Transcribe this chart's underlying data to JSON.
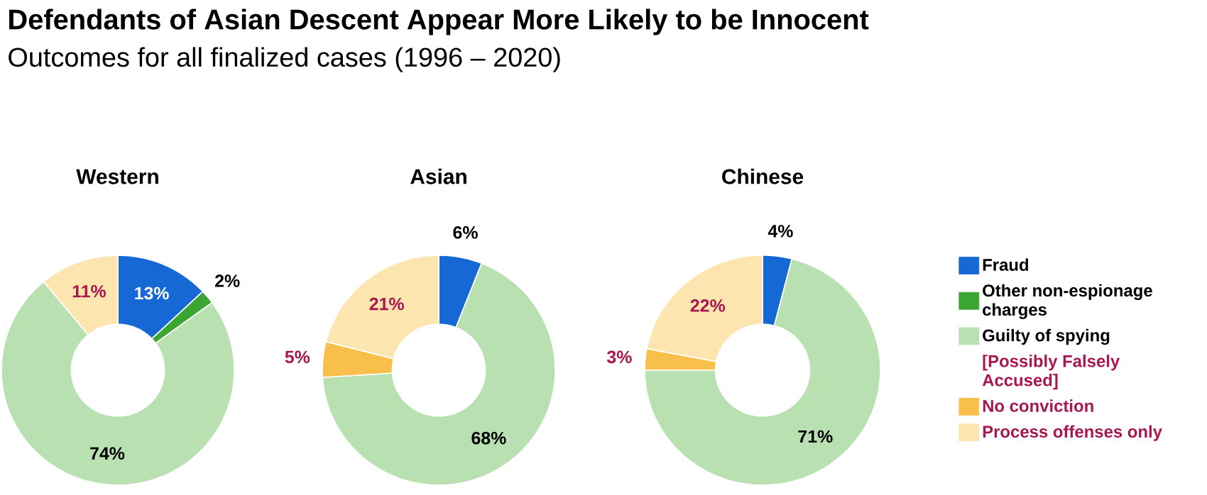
{
  "chart_data": [
    {
      "type": "other",
      "title": "Defendants of Asian Descent Appear More Likely to be Innocent",
      "subtitle": "Outcomes for all finalized cases (1996 – 2020)"
    },
    {
      "type": "donut",
      "title": "Western",
      "categories": [
        "Fraud",
        "Other non-espionage charges",
        "Guilty of spying",
        "No conviction",
        "Process offenses only"
      ],
      "values": [
        13,
        2,
        74,
        0,
        11
      ],
      "colors": [
        "#1668d4",
        "#3aa531",
        "#b8e0b0",
        "#f8c04a",
        "#fde5b0"
      ],
      "value_labels": [
        "13%",
        "2%",
        "74%",
        null,
        "11%"
      ],
      "legend": "right",
      "annotations": [
        "[Possibly Falsely Accused]"
      ]
    },
    {
      "type": "donut",
      "title": "Asian",
      "categories": [
        null,
        null,
        null,
        null,
        null
      ],
      "values": [
        6,
        0,
        68,
        5,
        21
      ],
      "colors": [
        "#1668d4",
        "#3aa531",
        "#b8e0b0",
        "#f8c04a",
        "#fde5b0"
      ],
      "value_labels": [
        "6%",
        null,
        "68%",
        "5%",
        "21%"
      ]
    },
    {
      "type": "donut",
      "title": "Chinese",
      "categories": [
        null,
        null,
        null,
        null,
        null
      ],
      "values": [
        4,
        0,
        71,
        3,
        22
      ],
      "colors": [
        "#1668d4",
        "#3aa531",
        "#b8e0b0",
        "#f8c04a",
        "#fde5b0"
      ],
      "value_labels": [
        "4%",
        null,
        "71%",
        "3%",
        "22%"
      ]
    }
  ]
}
